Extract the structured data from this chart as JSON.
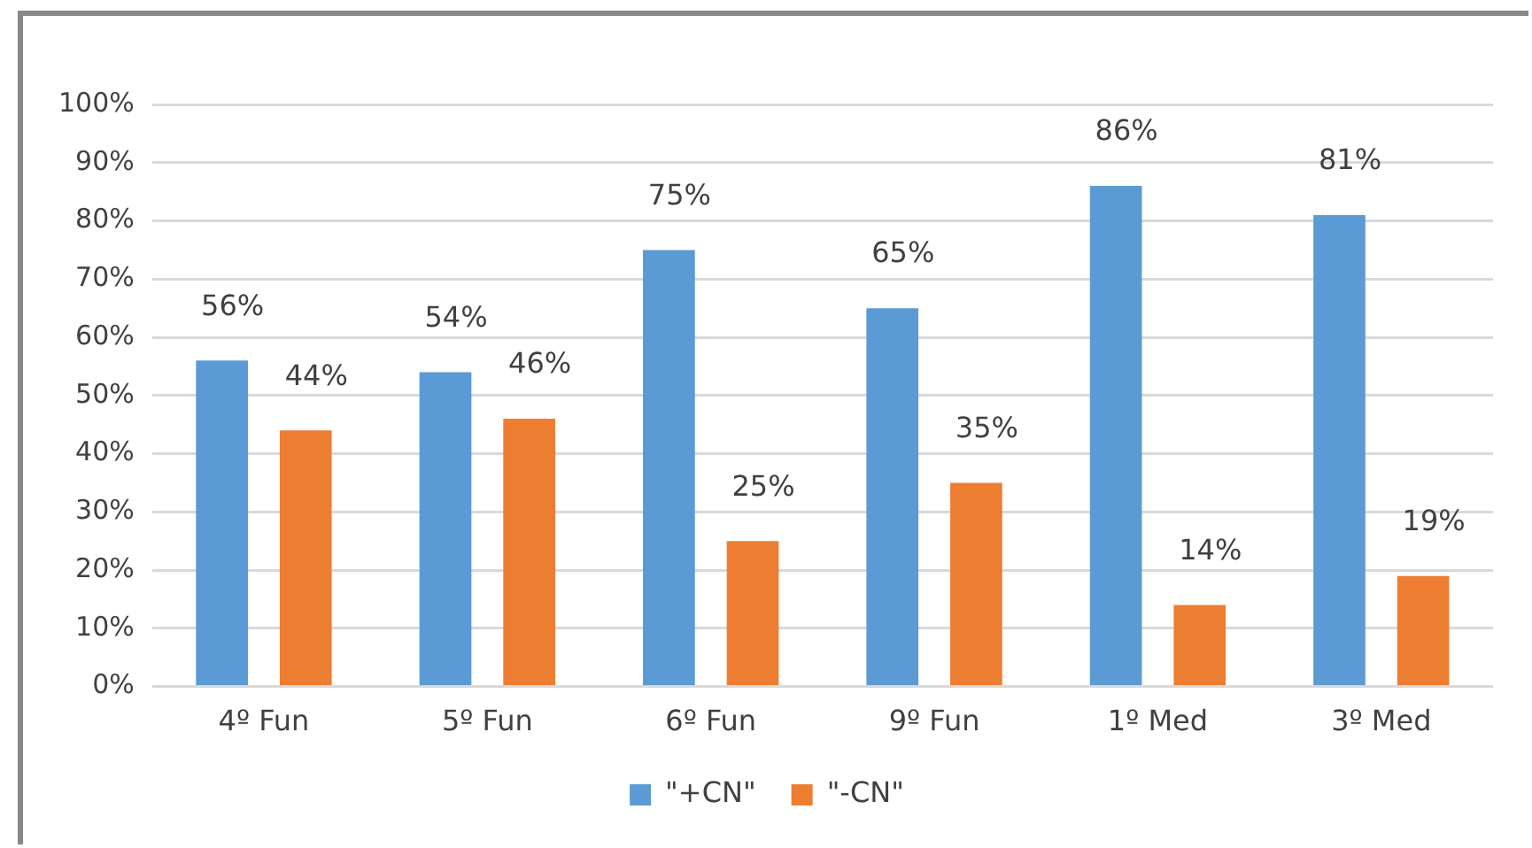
{
  "chart_data": {
    "type": "bar",
    "categories": [
      "4º Fun",
      "5º Fun",
      "6º Fun",
      "9º Fun",
      "1º Med",
      "3º Med"
    ],
    "series": [
      {
        "name": "\"+CN\"",
        "color": "#5b9bd5",
        "values": [
          56,
          54,
          75,
          65,
          86,
          81
        ],
        "value_labels": [
          "56%",
          "54%",
          "75%",
          "65%",
          "86%",
          "81%"
        ]
      },
      {
        "name": "\"-CN\"",
        "color": "#ed7d31",
        "values": [
          44,
          46,
          25,
          35,
          14,
          19
        ],
        "value_labels": [
          "44%",
          "46%",
          "25%",
          "35%",
          "14%",
          "19%"
        ]
      }
    ],
    "ylim": [
      0,
      100
    ],
    "yticks": [
      {
        "value": 0,
        "label": "0%"
      },
      {
        "value": 10,
        "label": "10%"
      },
      {
        "value": 20,
        "label": "20%"
      },
      {
        "value": 30,
        "label": "30%"
      },
      {
        "value": 40,
        "label": "40%"
      },
      {
        "value": 50,
        "label": "50%"
      },
      {
        "value": 60,
        "label": "60%"
      },
      {
        "value": 70,
        "label": "70%"
      },
      {
        "value": 80,
        "label": "80%"
      },
      {
        "value": 90,
        "label": "90%"
      },
      {
        "value": 100,
        "label": "100%"
      }
    ],
    "grid": "y",
    "legend": "bottom"
  }
}
